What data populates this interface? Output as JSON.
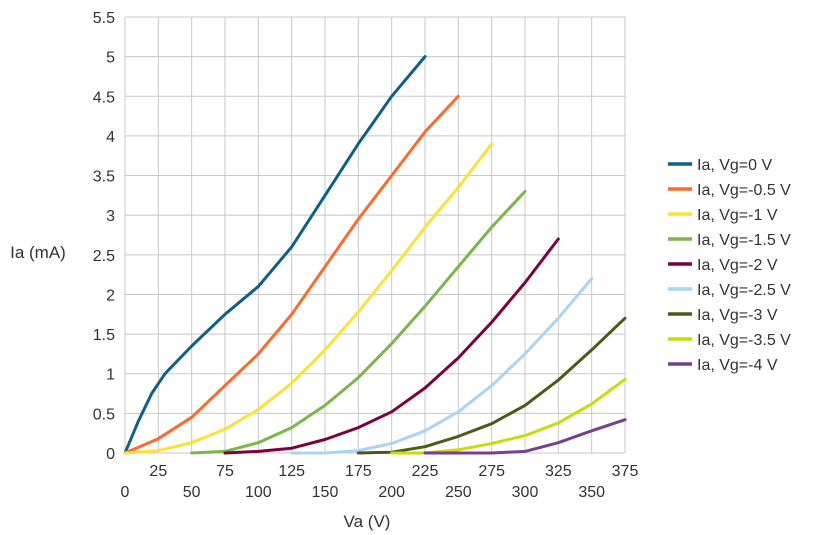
{
  "chart_data": {
    "type": "line",
    "title": "",
    "xlabel": "Va (V)",
    "ylabel": "Ia (mA)",
    "xlim": [
      0,
      375
    ],
    "ylim": [
      0,
      5.5
    ],
    "x_ticks": [
      "0",
      "25",
      "50",
      "75",
      "100",
      "125",
      "150",
      "175",
      "200",
      "225",
      "250",
      "275",
      "300",
      "325",
      "350",
      "375"
    ],
    "y_ticks": [
      "0",
      "0.5",
      "1",
      "1.5",
      "2",
      "2.5",
      "3",
      "3.5",
      "4",
      "4.5",
      "5",
      "5.5"
    ],
    "grid": true,
    "legend_position": "right",
    "series": [
      {
        "name": "Ia, Vg=0 V",
        "color": "#0e5f8a",
        "points": [
          [
            0,
            0
          ],
          [
            10,
            0.4
          ],
          [
            20,
            0.75
          ],
          [
            30,
            1.0
          ],
          [
            50,
            1.35
          ],
          [
            75,
            1.75
          ],
          [
            100,
            2.1
          ],
          [
            125,
            2.6
          ],
          [
            150,
            3.25
          ],
          [
            175,
            3.9
          ],
          [
            200,
            4.5
          ],
          [
            225,
            5.0
          ]
        ]
      },
      {
        "name": "Ia, Vg=-0.5 V",
        "color": "#ff6a2a",
        "points": [
          [
            0,
            0
          ],
          [
            25,
            0.18
          ],
          [
            50,
            0.45
          ],
          [
            75,
            0.85
          ],
          [
            100,
            1.25
          ],
          [
            125,
            1.75
          ],
          [
            150,
            2.35
          ],
          [
            175,
            2.95
          ],
          [
            200,
            3.5
          ],
          [
            225,
            4.05
          ],
          [
            250,
            4.5
          ]
        ]
      },
      {
        "name": "Ia, Vg=-1 V",
        "color": "#ffe135",
        "points": [
          [
            0,
            0
          ],
          [
            25,
            0.03
          ],
          [
            50,
            0.13
          ],
          [
            75,
            0.3
          ],
          [
            100,
            0.55
          ],
          [
            125,
            0.88
          ],
          [
            150,
            1.3
          ],
          [
            175,
            1.78
          ],
          [
            200,
            2.3
          ],
          [
            225,
            2.85
          ],
          [
            250,
            3.35
          ],
          [
            275,
            3.9
          ]
        ]
      },
      {
        "name": "Ia, Vg=-1.5 V",
        "color": "#7ab648",
        "points": [
          [
            50,
            0
          ],
          [
            75,
            0.02
          ],
          [
            100,
            0.13
          ],
          [
            125,
            0.32
          ],
          [
            150,
            0.6
          ],
          [
            175,
            0.95
          ],
          [
            200,
            1.38
          ],
          [
            225,
            1.85
          ],
          [
            250,
            2.35
          ],
          [
            275,
            2.85
          ],
          [
            300,
            3.3
          ]
        ]
      },
      {
        "name": "Ia, Vg=-2 V",
        "color": "#7d0042",
        "points": [
          [
            75,
            0
          ],
          [
            100,
            0.02
          ],
          [
            125,
            0.06
          ],
          [
            150,
            0.17
          ],
          [
            175,
            0.32
          ],
          [
            200,
            0.52
          ],
          [
            225,
            0.82
          ],
          [
            250,
            1.2
          ],
          [
            275,
            1.65
          ],
          [
            300,
            2.15
          ],
          [
            325,
            2.7
          ]
        ]
      },
      {
        "name": "Ia, Vg=-2.5 V",
        "color": "#aad4f2",
        "points": [
          [
            125,
            0
          ],
          [
            150,
            0.0
          ],
          [
            175,
            0.03
          ],
          [
            200,
            0.12
          ],
          [
            225,
            0.28
          ],
          [
            250,
            0.52
          ],
          [
            275,
            0.85
          ],
          [
            300,
            1.25
          ],
          [
            325,
            1.7
          ],
          [
            350,
            2.2
          ]
        ]
      },
      {
        "name": "Ia, Vg=-3 V",
        "color": "#4b5a17",
        "points": [
          [
            175,
            0
          ],
          [
            200,
            0.01
          ],
          [
            225,
            0.08
          ],
          [
            250,
            0.21
          ],
          [
            275,
            0.37
          ],
          [
            300,
            0.6
          ],
          [
            325,
            0.92
          ],
          [
            350,
            1.3
          ],
          [
            375,
            1.7
          ]
        ]
      },
      {
        "name": "Ia, Vg=-3.5 V",
        "color": "#c7dc0a",
        "points": [
          [
            200,
            0
          ],
          [
            225,
            0.0
          ],
          [
            250,
            0.04
          ],
          [
            275,
            0.12
          ],
          [
            300,
            0.22
          ],
          [
            325,
            0.38
          ],
          [
            350,
            0.62
          ],
          [
            375,
            0.93
          ]
        ]
      },
      {
        "name": "Ia, Vg=-4 V",
        "color": "#7a3e8f",
        "points": [
          [
            225,
            0
          ],
          [
            250,
            0
          ],
          [
            275,
            0.0
          ],
          [
            300,
            0.02
          ],
          [
            325,
            0.13
          ],
          [
            350,
            0.28
          ],
          [
            375,
            0.42
          ]
        ]
      }
    ]
  }
}
